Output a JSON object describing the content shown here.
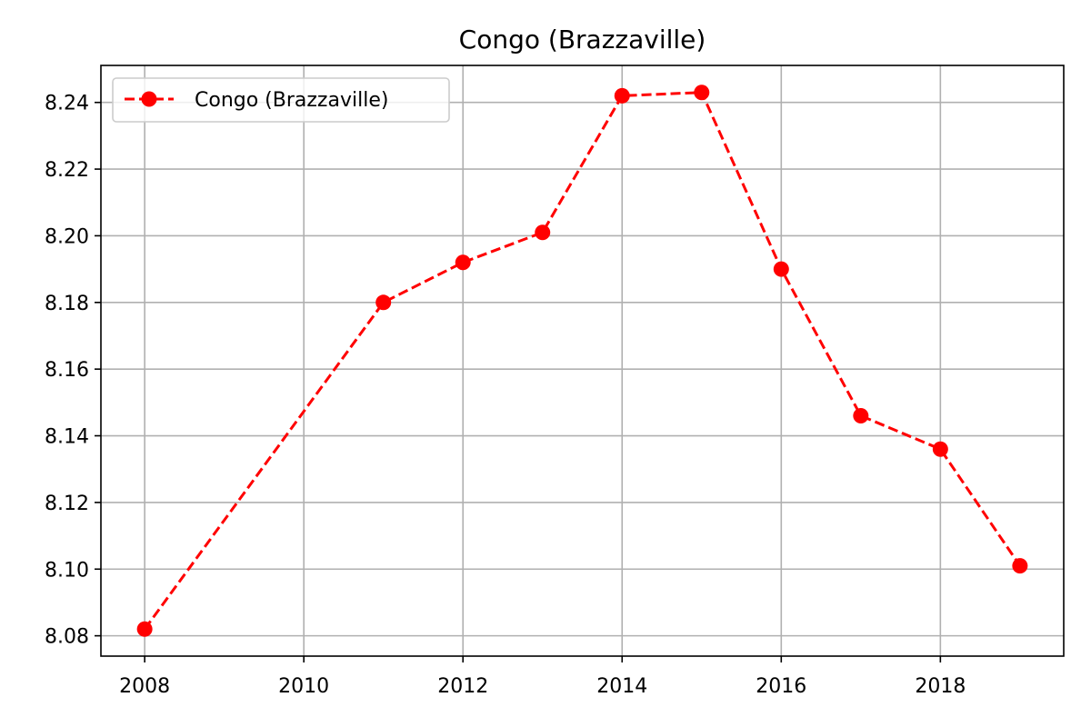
{
  "chart_data": {
    "type": "line",
    "title": "Congo (Brazzaville)",
    "xlabel": "",
    "ylabel": "",
    "x": [
      2008,
      2011,
      2012,
      2013,
      2014,
      2015,
      2016,
      2017,
      2018,
      2019
    ],
    "series": [
      {
        "name": "Congo (Brazzaville)",
        "values": [
          8.082,
          8.18,
          8.192,
          8.201,
          8.242,
          8.243,
          8.19,
          8.146,
          8.136,
          8.101
        ],
        "color": "#ff0000",
        "line_style": "dashed",
        "marker": "circle"
      }
    ],
    "xlim": [
      2007.45,
      2019.55
    ],
    "ylim": [
      8.0739,
      8.2511
    ],
    "xticks": [
      2008,
      2010,
      2012,
      2014,
      2016,
      2018
    ],
    "yticks": [
      8.08,
      8.1,
      8.12,
      8.14,
      8.16,
      8.18,
      8.2,
      8.22,
      8.24
    ],
    "ytick_labels": [
      "8.08",
      "8.10",
      "8.12",
      "8.14",
      "8.16",
      "8.18",
      "8.20",
      "8.22",
      "8.24"
    ],
    "grid": true,
    "legend_position": "upper-left"
  }
}
